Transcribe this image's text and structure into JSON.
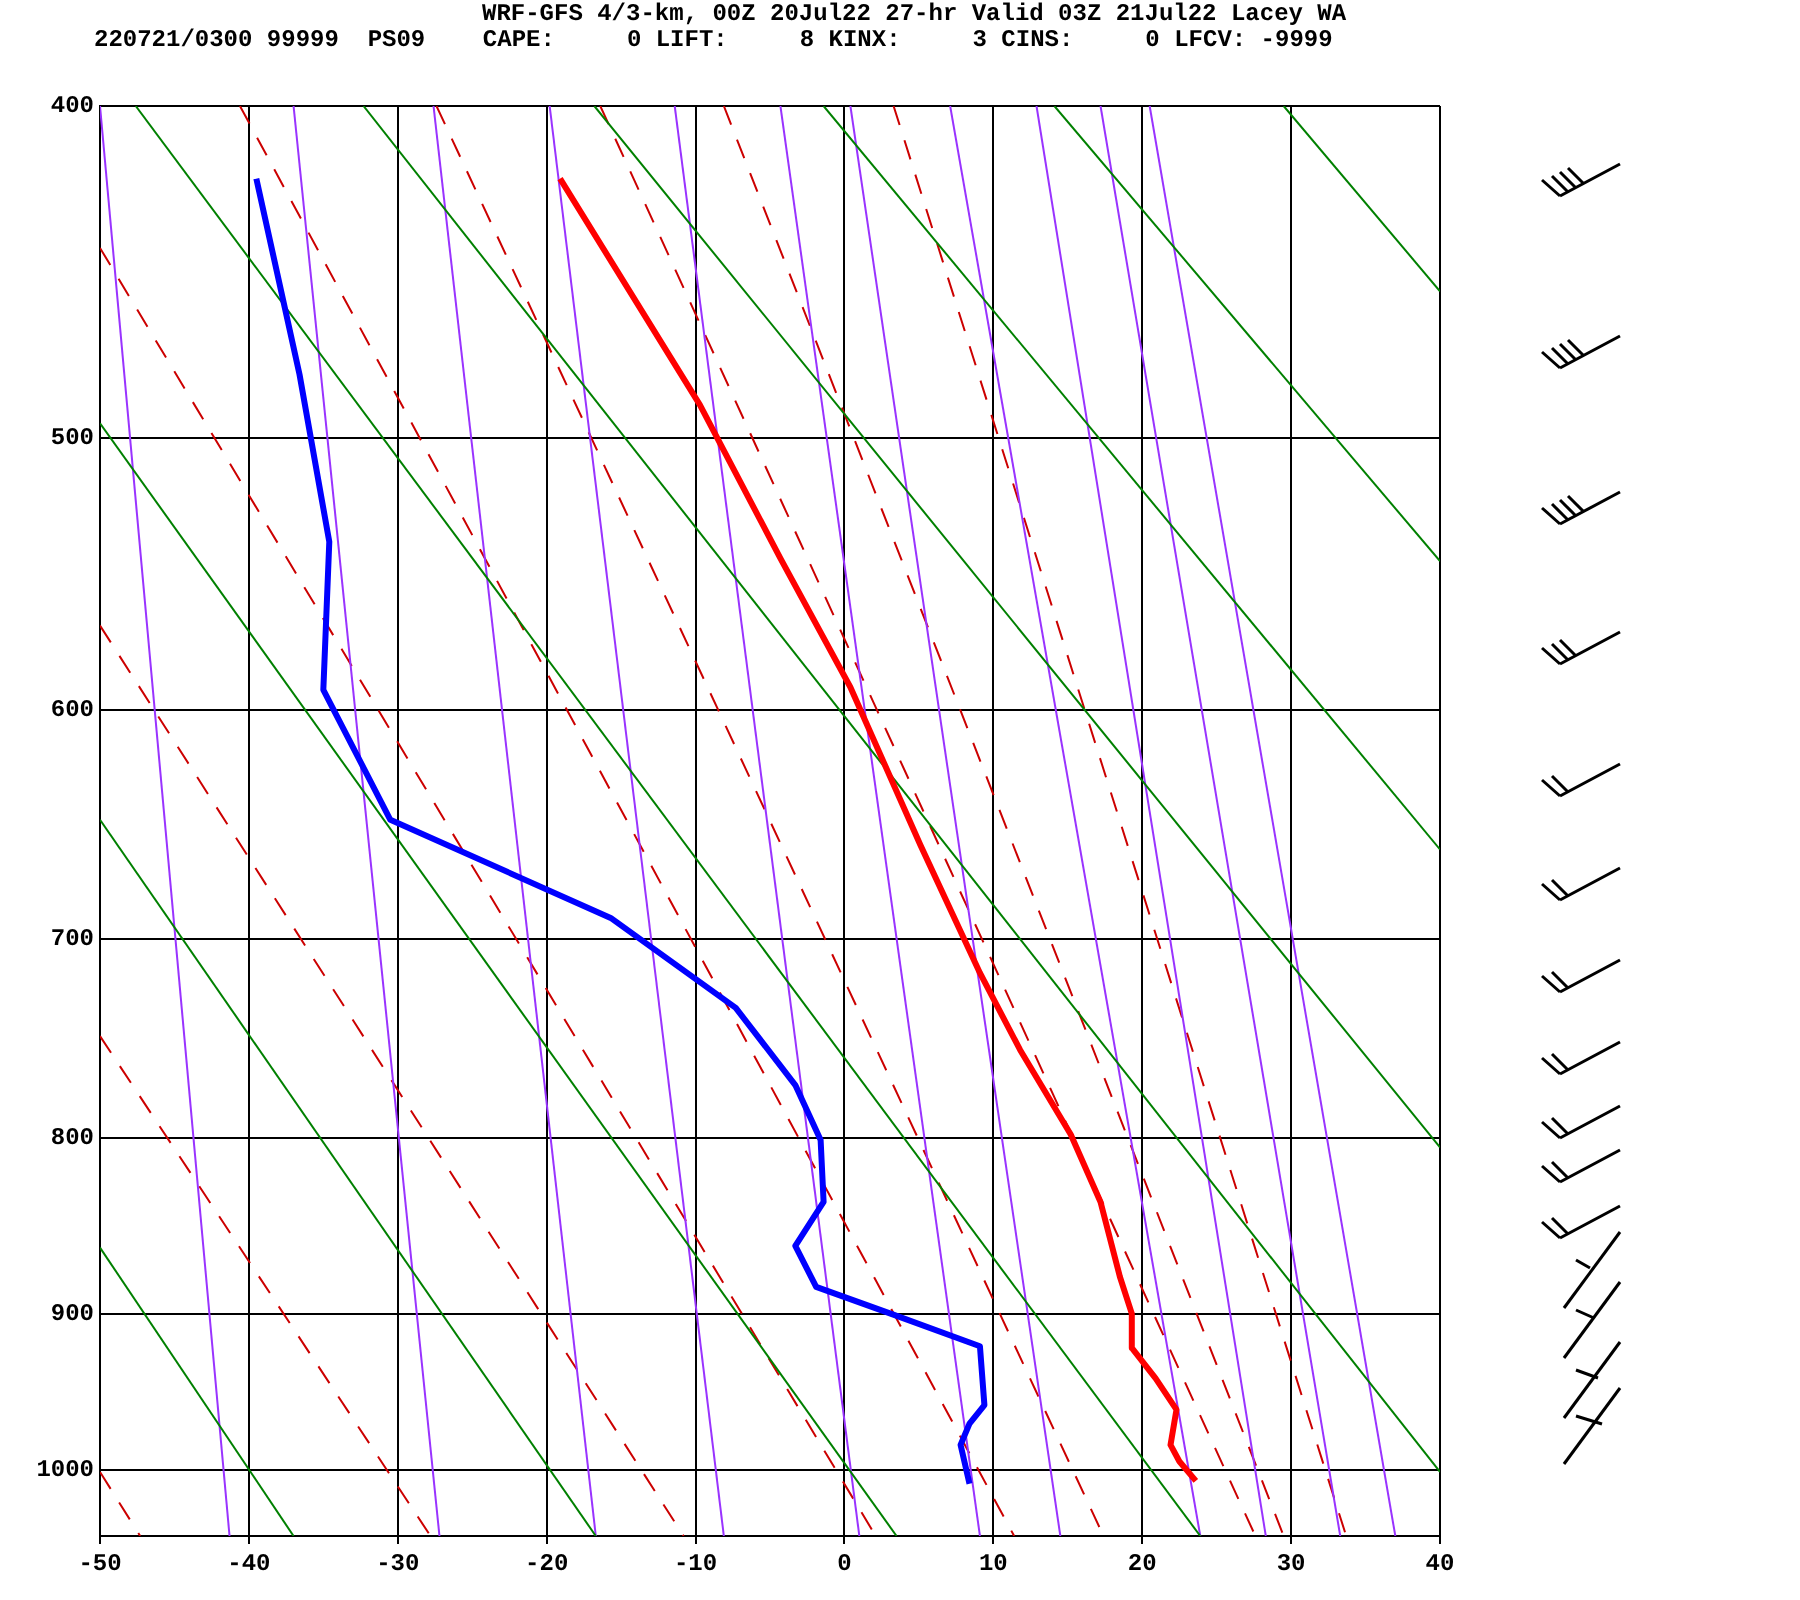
{
  "chart_data": {
    "type": "line",
    "title": "WRF-GFS 4/3-km, 00Z 20Jul22 27-hr Valid 03Z 21Jul22 Lacey WA",
    "subtitle": "220721/0300 99999  PS09    CAPE:     0 LIFT:     8 KINX:     3 CINS:     0 LFCV: -9999",
    "xlim": [
      -50,
      40
    ],
    "xticks": [
      -50,
      -40,
      -30,
      -20,
      -10,
      0,
      10,
      20,
      30,
      40
    ],
    "ylim": [
      1045,
      400
    ],
    "yticks": [
      400,
      500,
      600,
      700,
      800,
      900,
      1000
    ],
    "log": "y",
    "grid": true,
    "legend": false,
    "marker": "none",
    "series": [
      {
        "color": "#ff0000",
        "x": [
          -19.1,
          -9.7,
          -4.3,
          0.4,
          5.1,
          9.1,
          11.8,
          15.2,
          17.2,
          18.5,
          19.3,
          19.3,
          20.9,
          22.3,
          21.9,
          22.5,
          23.6
        ],
        "values": [
          420,
          489,
          542,
          591,
          657,
          716,
          754,
          798,
          835,
          878,
          900,
          921,
          940,
          960,
          983,
          994,
          1007
        ]
      },
      {
        "color": "#0000ff",
        "x": [
          -39.5,
          -36.6,
          -34.6,
          -35.0,
          -30.5,
          -15.7,
          -7.3,
          -3.3,
          -1.6,
          -1.4,
          -3.3,
          -1.9,
          3.1,
          9.1,
          9.4,
          8.4,
          7.8,
          8.4
        ],
        "values": [
          420,
          479,
          536,
          592,
          646,
          690,
          733,
          772,
          801,
          835,
          860,
          884,
          900,
          920,
          957,
          969,
          983,
          1009
        ]
      },
      {
        "color": "#008000",
        "x": [
          29.5,
          40
        ],
        "values": [
          400,
          453
        ]
      },
      {
        "color": "#008000",
        "x": [
          14.1,
          40
        ],
        "values": [
          400,
          543
        ]
      },
      {
        "color": "#008000",
        "x": [
          -1.4,
          40
        ],
        "values": [
          400,
          659
        ]
      },
      {
        "color": "#008000",
        "x": [
          -16.8,
          40
        ],
        "values": [
          400,
          805
        ]
      },
      {
        "color": "#008000",
        "x": [
          -32.3,
          40
        ],
        "values": [
          400,
          1001
        ]
      },
      {
        "color": "#008000",
        "x": [
          -47.6,
          23.9
        ],
        "values": [
          400,
          1045
        ]
      },
      {
        "color": "#008000",
        "x": [
          -50,
          3.5
        ],
        "values": [
          495,
          1045
        ]
      },
      {
        "color": "#008000",
        "x": [
          -50,
          -16.7
        ],
        "values": [
          646,
          1045
        ]
      },
      {
        "color": "#008000",
        "x": [
          -50,
          -37.0
        ],
        "values": [
          861,
          1045
        ]
      },
      {
        "color": "#9933ff",
        "x": [
          -50,
          -41.3
        ],
        "values": [
          400,
          1045
        ]
      },
      {
        "color": "#9933ff",
        "x": [
          -37.0,
          -27.2
        ],
        "values": [
          400,
          1045
        ]
      },
      {
        "color": "#9933ff",
        "x": [
          -27.6,
          -16.7
        ],
        "values": [
          400,
          1045
        ]
      },
      {
        "color": "#9933ff",
        "x": [
          -19.8,
          -8.1
        ],
        "values": [
          400,
          1045
        ]
      },
      {
        "color": "#9933ff",
        "x": [
          -11.4,
          1.0
        ],
        "values": [
          400,
          1045
        ]
      },
      {
        "color": "#9933ff",
        "x": [
          -4.3,
          9.1
        ],
        "values": [
          400,
          1045
        ]
      },
      {
        "color": "#9933ff",
        "x": [
          0.4,
          14.5
        ],
        "values": [
          400,
          1045
        ]
      },
      {
        "color": "#9933ff",
        "x": [
          7.1,
          23.9
        ],
        "values": [
          400,
          1045
        ]
      },
      {
        "color": "#9933ff",
        "x": [
          12.9,
          28.3
        ],
        "values": [
          400,
          1045
        ]
      },
      {
        "color": "#9933ff",
        "x": [
          17.2,
          33.3
        ],
        "values": [
          400,
          1045
        ]
      },
      {
        "color": "#9933ff",
        "x": [
          20.5,
          37.0
        ],
        "values": [
          400,
          1045
        ]
      },
      {
        "color": "#cc0000",
        "line_style": "dashed",
        "x": [
          -50,
          -47.3
        ],
        "values": [
          1001,
          1045
        ]
      },
      {
        "color": "#cc0000",
        "line_style": "dashed",
        "x": [
          -50,
          -27.8
        ],
        "values": [
          747,
          1045
        ]
      },
      {
        "color": "#cc0000",
        "line_style": "dashed",
        "x": [
          -50,
          -10.8
        ],
        "values": [
          567,
          1045
        ]
      },
      {
        "color": "#cc0000",
        "line_style": "dashed",
        "x": [
          -50,
          2.1
        ],
        "values": [
          440,
          1045
        ]
      },
      {
        "color": "#cc0000",
        "line_style": "dashed",
        "x": [
          -40.6,
          11.4
        ],
        "values": [
          400,
          1045
        ]
      },
      {
        "color": "#cc0000",
        "line_style": "dashed",
        "x": [
          -27.4,
          17.4
        ],
        "values": [
          400,
          1045
        ]
      },
      {
        "color": "#cc0000",
        "line_style": "dashed",
        "x": [
          -16.4,
          27.6
        ],
        "values": [
          400,
          1045
        ]
      },
      {
        "color": "#cc0000",
        "line_style": "dashed",
        "x": [
          -8.1,
          29.5
        ],
        "values": [
          400,
          1045
        ]
      },
      {
        "color": "#cc0000",
        "line_style": "dashed",
        "x": [
          3.3,
          33.7
        ],
        "values": [
          400,
          1045
        ]
      }
    ]
  }
}
